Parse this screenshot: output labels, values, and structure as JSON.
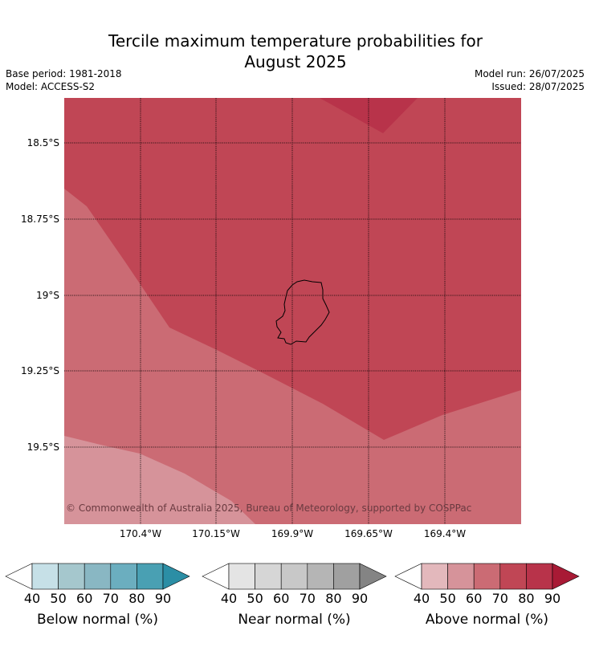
{
  "title_line1": "Tercile maximum temperature probabilities for",
  "title_line2": "August 2025",
  "base_period": "Base period: 1981-2018",
  "model": "Model: ACCESS-S2",
  "model_run": "Model run: 26/07/2025",
  "issued": "Issued: 28/07/2025",
  "copyright": "© Commonwealth of Australia 2025, Bureau of Meteorology, supported by COSPPac",
  "lat_labels": [
    "18.5°S",
    "18.75°S",
    "19°S",
    "19.25°S",
    "19.5°S"
  ],
  "lon_labels": [
    "170.4°W",
    "170.15°W",
    "169.9°W",
    "169.65°W",
    "169.4°W"
  ],
  "colors": {
    "above_50": "#d6939a",
    "above_60": "#cb6b74",
    "above_70": "#c04655",
    "above_80": "#b8334a",
    "coastline": "#000000"
  },
  "legends": [
    {
      "caption": "Below normal (%)",
      "ticks": [
        "40",
        "50",
        "60",
        "70",
        "80",
        "90"
      ],
      "colors": [
        "#ffffff",
        "#c6e0e7",
        "#a5c7cd",
        "#89b7c3",
        "#6baebf",
        "#49a0b3",
        "#2b8ea5"
      ]
    },
    {
      "caption": "Near normal (%)",
      "ticks": [
        "40",
        "50",
        "60",
        "70",
        "80",
        "90"
      ],
      "colors": [
        "#ffffff",
        "#e4e4e4",
        "#d6d6d6",
        "#c8c8c8",
        "#b5b5b5",
        "#a0a0a0",
        "#848484"
      ]
    },
    {
      "caption": "Above normal (%)",
      "ticks": [
        "40",
        "50",
        "60",
        "70",
        "80",
        "90"
      ],
      "colors": [
        "#ffffff",
        "#e3b8bc",
        "#d6939a",
        "#cb6b74",
        "#c04655",
        "#b8334a",
        "#a81a35"
      ]
    }
  ]
}
